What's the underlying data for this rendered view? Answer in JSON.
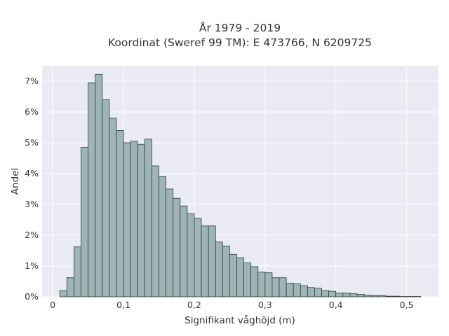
{
  "chart_data": {
    "type": "bar",
    "title_line1": "År 1979 - 2019",
    "title_line2": "Koordinat (Sweref 99 TM): E 473766, N 6209725",
    "xlabel": "Signifikant våghöjd (m)",
    "ylabel": "Andel",
    "x_ticks": [
      0,
      0.1,
      0.2,
      0.3,
      0.4,
      0.5
    ],
    "x_tick_labels": [
      "0",
      "0,1",
      "0,2",
      "0,3",
      "0,4",
      "0,5"
    ],
    "y_ticks": [
      0,
      1,
      2,
      3,
      4,
      5,
      6,
      7
    ],
    "y_tick_labels": [
      "0%",
      "1%",
      "2%",
      "3%",
      "4%",
      "5%",
      "6%",
      "7%"
    ],
    "xlim": [
      -0.015,
      0.545
    ],
    "ylim": [
      0,
      7.5
    ],
    "bin_start": 0.01,
    "bin_width": 0.01,
    "values": [
      0.2,
      0.62,
      1.62,
      4.85,
      6.95,
      7.22,
      6.4,
      5.8,
      5.4,
      5.0,
      5.05,
      4.95,
      5.12,
      4.25,
      3.9,
      3.5,
      3.2,
      2.95,
      2.7,
      2.55,
      2.3,
      2.3,
      1.78,
      1.65,
      1.38,
      1.27,
      1.1,
      0.98,
      0.8,
      0.78,
      0.62,
      0.62,
      0.44,
      0.42,
      0.36,
      0.3,
      0.28,
      0.2,
      0.18,
      0.12,
      0.12,
      0.1,
      0.08,
      0.05,
      0.04,
      0.04,
      0.02,
      0.02,
      0.01,
      0.01,
      0.01
    ],
    "colors": {
      "bar_fill": "#9fb5b5",
      "bar_edge": "#2b3a3a",
      "plot_bg": "#eaeaf2",
      "grid": "#ffffff"
    },
    "grid": true
  }
}
